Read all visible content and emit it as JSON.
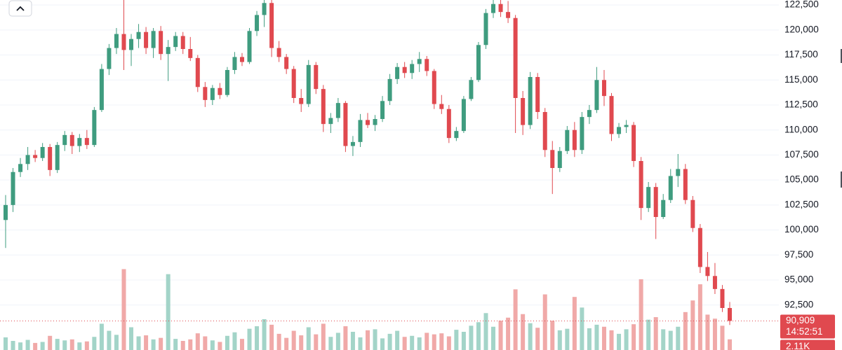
{
  "chart_data": {
    "type": "candlestick",
    "up_color": "#3f9c7f",
    "down_color": "#e0494f",
    "volume_up_color": "#a3d4c8",
    "volume_down_color": "#f0a9a8",
    "grid": true,
    "ylim": [
      88000,
      123000
    ],
    "yticks": [
      {
        "value": 92500,
        "label": "92,500"
      },
      {
        "value": 95000,
        "label": "95,000"
      },
      {
        "value": 97500,
        "label": "97,500"
      },
      {
        "value": 100000,
        "label": "100,000"
      },
      {
        "value": 102500,
        "label": "102,500"
      },
      {
        "value": 105000,
        "label": "105,000"
      },
      {
        "value": 107500,
        "label": "107,500"
      },
      {
        "value": 110000,
        "label": "110,000"
      },
      {
        "value": 112500,
        "label": "112,500"
      },
      {
        "value": 115000,
        "label": "115,000"
      },
      {
        "value": 117500,
        "label": "117,500"
      },
      {
        "value": 120000,
        "label": "120,000"
      },
      {
        "value": 122500,
        "label": "122,500"
      }
    ],
    "ohlc": [
      [
        101000,
        103500,
        98200,
        102500
      ],
      [
        102500,
        106200,
        101800,
        105800
      ],
      [
        105800,
        107200,
        105300,
        106600
      ],
      [
        106600,
        108300,
        106000,
        107500
      ],
      [
        107500,
        108000,
        106800,
        107200
      ],
      [
        107200,
        108700,
        106900,
        108300
      ],
      [
        108300,
        108600,
        105400,
        106000
      ],
      [
        106000,
        108800,
        105700,
        108500
      ],
      [
        108500,
        109900,
        107900,
        109500
      ],
      [
        109500,
        109800,
        107600,
        108400
      ],
      [
        108400,
        109600,
        107800,
        109200
      ],
      [
        109200,
        110000,
        108100,
        108500
      ],
      [
        108500,
        112300,
        108300,
        112000
      ],
      [
        112000,
        116600,
        111800,
        116100
      ],
      [
        116100,
        118600,
        115500,
        118200
      ],
      [
        118200,
        120200,
        117600,
        119600
      ],
      [
        119600,
        123000,
        116000,
        118000
      ],
      [
        118000,
        119600,
        116400,
        119100
      ],
      [
        119100,
        120600,
        118200,
        119800
      ],
      [
        119800,
        120300,
        117600,
        118200
      ],
      [
        118200,
        120200,
        117200,
        119900
      ],
      [
        119900,
        120400,
        117000,
        117600
      ],
      [
        117600,
        119000,
        114900,
        118300
      ],
      [
        118300,
        119800,
        117900,
        119400
      ],
      [
        119400,
        119800,
        117600,
        118100
      ],
      [
        118100,
        119300,
        116900,
        117200
      ],
      [
        117200,
        117500,
        113800,
        114300
      ],
      [
        114300,
        114800,
        112300,
        113000
      ],
      [
        113000,
        114500,
        112500,
        114200
      ],
      [
        114200,
        114700,
        113100,
        113500
      ],
      [
        113500,
        116300,
        113300,
        116000
      ],
      [
        116000,
        117800,
        115600,
        117300
      ],
      [
        117300,
        117700,
        116400,
        116800
      ],
      [
        116800,
        120200,
        116600,
        119900
      ],
      [
        119900,
        121900,
        119400,
        121500
      ],
      [
        121500,
        123000,
        120300,
        122700
      ],
      [
        122700,
        123000,
        117300,
        118200
      ],
      [
        118200,
        118900,
        116800,
        117300
      ],
      [
        117300,
        117600,
        115600,
        116100
      ],
      [
        116100,
        116400,
        112700,
        113200
      ],
      [
        113200,
        114100,
        111800,
        112600
      ],
      [
        112600,
        117000,
        112300,
        116500
      ],
      [
        116500,
        116800,
        113600,
        114100
      ],
      [
        114100,
        114500,
        109800,
        110600
      ],
      [
        110600,
        111700,
        109700,
        111200
      ],
      [
        111200,
        113200,
        110800,
        112700
      ],
      [
        112700,
        112900,
        107800,
        108400
      ],
      [
        108400,
        109400,
        107400,
        108800
      ],
      [
        108800,
        111600,
        108300,
        111000
      ],
      [
        111000,
        111700,
        110200,
        110500
      ],
      [
        110500,
        111500,
        109900,
        111100
      ],
      [
        111100,
        113400,
        110800,
        112900
      ],
      [
        112900,
        115600,
        112500,
        115100
      ],
      [
        115100,
        116700,
        114600,
        116300
      ],
      [
        116300,
        116800,
        115200,
        115700
      ],
      [
        115700,
        117000,
        115100,
        116600
      ],
      [
        116600,
        117800,
        115800,
        117100
      ],
      [
        117100,
        117400,
        115400,
        115900
      ],
      [
        115900,
        116100,
        112100,
        112600
      ],
      [
        112600,
        113500,
        111600,
        112100
      ],
      [
        112100,
        112500,
        108700,
        109200
      ],
      [
        109200,
        110300,
        108900,
        109900
      ],
      [
        109900,
        113400,
        109700,
        113100
      ],
      [
        113100,
        115300,
        112900,
        115000
      ],
      [
        115000,
        118800,
        114800,
        118500
      ],
      [
        118500,
        122100,
        118100,
        121700
      ],
      [
        121700,
        123000,
        121200,
        122600
      ],
      [
        122600,
        123000,
        121300,
        121800
      ],
      [
        121800,
        122900,
        120700,
        121200
      ],
      [
        121200,
        121500,
        109700,
        113200
      ],
      [
        113200,
        113900,
        109500,
        110500
      ],
      [
        110500,
        115800,
        110100,
        115300
      ],
      [
        115300,
        115700,
        111100,
        111800
      ],
      [
        111800,
        112200,
        107300,
        108000
      ],
      [
        108000,
        108900,
        103600,
        106200
      ],
      [
        106200,
        108300,
        105800,
        107900
      ],
      [
        107900,
        110400,
        107600,
        110000
      ],
      [
        110000,
        110800,
        107300,
        108000
      ],
      [
        108000,
        111800,
        107600,
        111300
      ],
      [
        111300,
        112500,
        110600,
        112000
      ],
      [
        112000,
        116300,
        111700,
        115000
      ],
      [
        115000,
        116000,
        112400,
        113400
      ],
      [
        113400,
        113700,
        108900,
        109600
      ],
      [
        109600,
        110700,
        109200,
        110300
      ],
      [
        110300,
        111000,
        109700,
        110500
      ],
      [
        110500,
        110800,
        106300,
        106900
      ],
      [
        106900,
        107300,
        101000,
        102200
      ],
      [
        102200,
        104800,
        101800,
        104300
      ],
      [
        104300,
        104700,
        99100,
        101300
      ],
      [
        101300,
        103600,
        101100,
        103000
      ],
      [
        103000,
        106100,
        102700,
        105400
      ],
      [
        105400,
        107600,
        104300,
        106100
      ],
      [
        106100,
        106600,
        102600,
        103000
      ],
      [
        103000,
        103400,
        99800,
        100200
      ],
      [
        100200,
        100600,
        95700,
        96300
      ],
      [
        96300,
        97800,
        94900,
        95400
      ],
      [
        95400,
        96700,
        93600,
        94100
      ],
      [
        94100,
        94500,
        91800,
        92200
      ],
      [
        92200,
        92800,
        90500,
        90909
      ]
    ],
    "volume": {
      "ylim": [
        0,
        18000
      ],
      "values": [
        2500,
        1800,
        1500,
        2000,
        1400,
        1600,
        2800,
        2200,
        1900,
        2100,
        1500,
        1700,
        2600,
        5200,
        3800,
        3000,
        16000,
        4500,
        2700,
        2900,
        2100,
        2400,
        15000,
        2200,
        1800,
        2100,
        3300,
        2700,
        1900,
        1600,
        2800,
        3500,
        2200,
        4200,
        4700,
        6100,
        5000,
        3200,
        2400,
        3800,
        2900,
        4500,
        3100,
        5200,
        2600,
        3400,
        4700,
        3600,
        2500,
        3900,
        4100,
        2300,
        3200,
        3800,
        2600,
        2800,
        2500,
        3400,
        3100,
        3300,
        2700,
        4000,
        3600,
        4800,
        5500,
        7300,
        4600,
        5800,
        6400,
        12000,
        7100,
        5300,
        4400,
        11000,
        5800,
        3900,
        4200,
        10500,
        8400,
        4300,
        5000,
        4600,
        3900,
        3200,
        4100,
        5100,
        14000,
        6000,
        6500,
        4100,
        3800,
        4600,
        7500,
        9800,
        13000,
        7000,
        6200,
        4800,
        2110
      ],
      "last_label": {
        "value": 2110,
        "label": "2.11K"
      }
    },
    "price_line": {
      "value": 90909,
      "label": "90,909"
    },
    "countdown": "14:52:51"
  }
}
